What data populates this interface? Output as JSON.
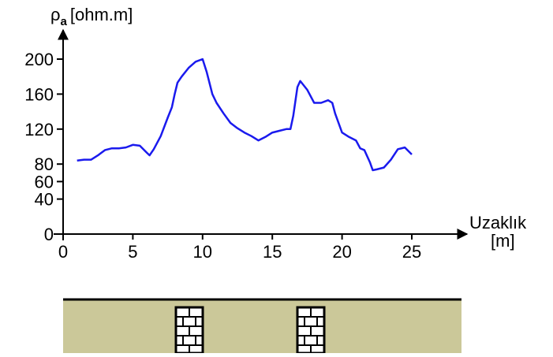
{
  "chart_data": {
    "type": "line",
    "y_label": "ρ",
    "y_label_sub": "a",
    "y_label_unit": "[ohm.m]",
    "x_label": "Uzaklık",
    "x_label_unit": "[m]",
    "x": [
      1,
      1.5,
      2,
      2.5,
      3,
      3.5,
      4,
      4.5,
      5,
      5.5,
      6,
      6.2,
      6.5,
      7,
      7.5,
      7.8,
      8,
      8.2,
      8.5,
      9,
      9.5,
      10,
      10.3,
      10.7,
      11,
      11.5,
      12,
      12.5,
      13,
      13.5,
      14,
      14.5,
      15,
      15.5,
      16,
      16.3,
      16.5,
      16.8,
      17,
      17.5,
      18,
      18.5,
      19,
      19.3,
      19.5,
      20,
      20.5,
      21,
      21.3,
      21.6,
      22,
      22.2,
      22.5,
      23,
      23.5,
      24,
      24.5,
      25
    ],
    "values": [
      84,
      85,
      85,
      90,
      96,
      98,
      98,
      99,
      102,
      101,
      93,
      90,
      97,
      112,
      133,
      145,
      160,
      173,
      180,
      190,
      197,
      200,
      185,
      160,
      150,
      138,
      127,
      121,
      116,
      112,
      107,
      111,
      116,
      118,
      120,
      120,
      135,
      168,
      175,
      165,
      150,
      150,
      153,
      150,
      138,
      116,
      111,
      107,
      98,
      96,
      82,
      73,
      74,
      76,
      85,
      97,
      99,
      91
    ],
    "color": "#1a1aee",
    "xlim": [
      0,
      25
    ],
    "ylim": [
      0,
      200
    ],
    "xticks": [
      0,
      5,
      10,
      15,
      20,
      25
    ],
    "yticks": [
      0,
      40,
      60,
      80,
      120,
      160,
      200
    ]
  }
}
